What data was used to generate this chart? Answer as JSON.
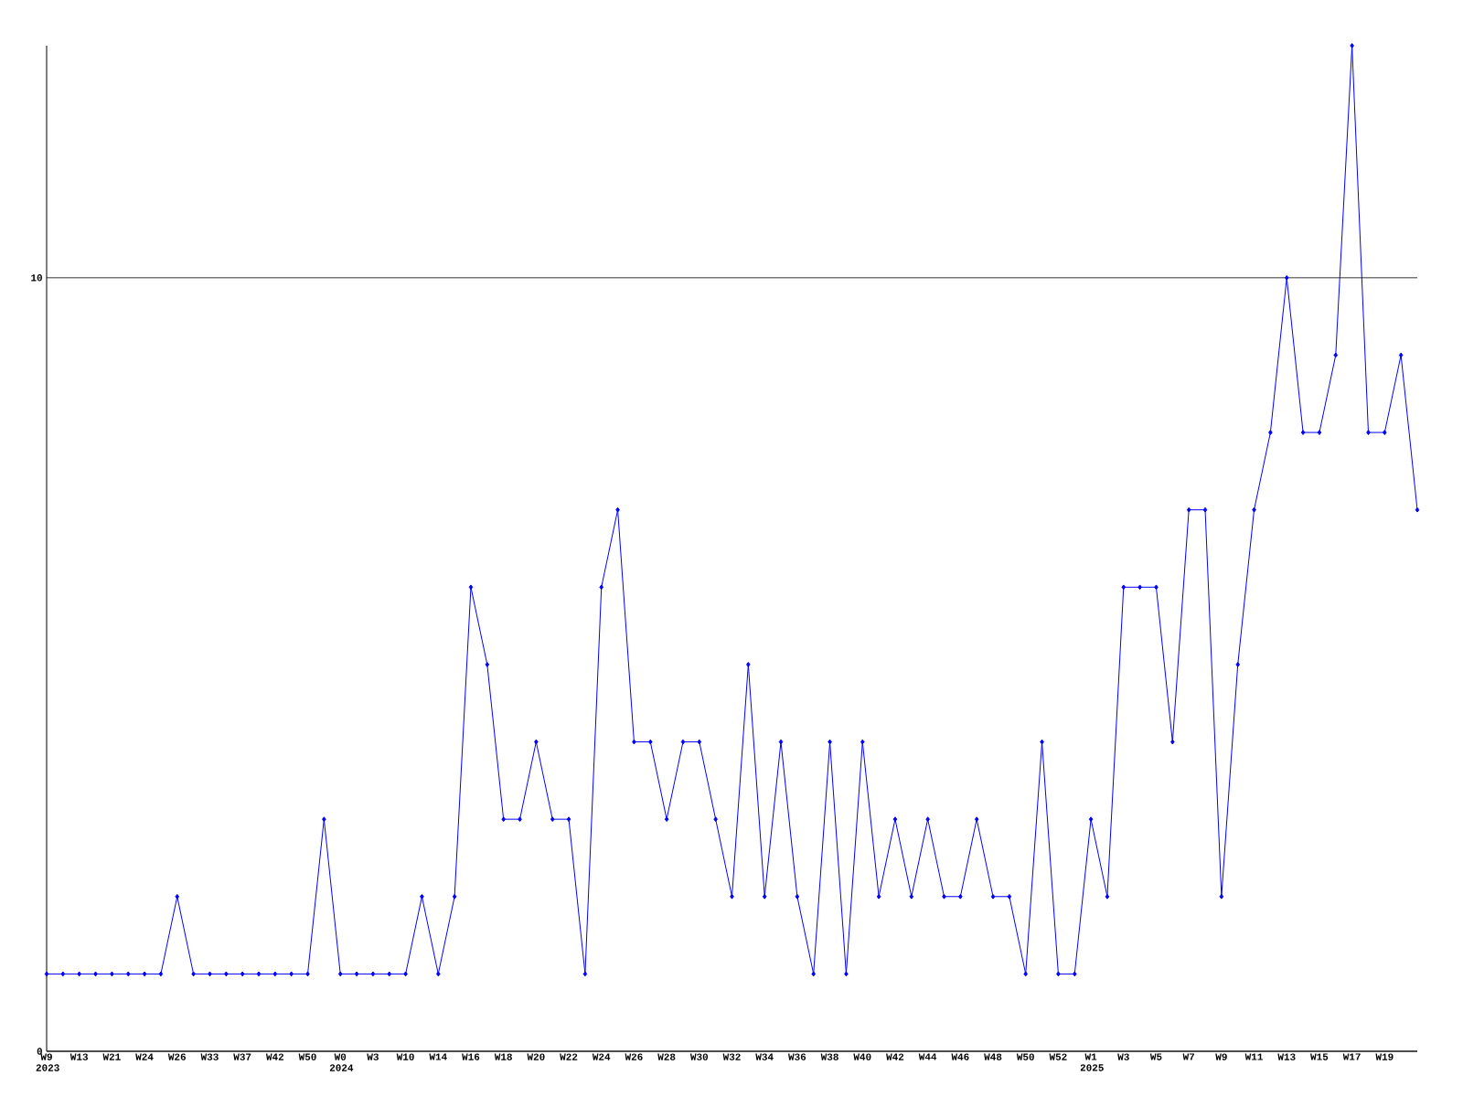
{
  "chart_data": {
    "type": "line",
    "categories": [
      "W9 2023",
      null,
      "W13",
      null,
      "W21",
      null,
      "W24",
      null,
      "W26",
      null,
      "W33",
      null,
      "W37",
      null,
      "W42",
      null,
      "W50",
      null,
      "W0 2024",
      null,
      "W3",
      null,
      "W10",
      null,
      "W14",
      null,
      "W16",
      null,
      "W18",
      null,
      "W20",
      null,
      "W22",
      null,
      "W24",
      null,
      "W26",
      null,
      "W28",
      null,
      "W30",
      null,
      "W32",
      null,
      "W34",
      null,
      "W36",
      null,
      "W38",
      null,
      "W40",
      null,
      "W42",
      null,
      "W44",
      null,
      "W46",
      null,
      "W48",
      null,
      "W50",
      null,
      "W52",
      null,
      "W1 2025",
      null,
      "W3",
      null,
      "W5",
      null,
      "W7",
      null,
      "W9",
      null,
      "W11",
      null,
      "W13",
      null,
      "W15",
      null,
      "W17",
      null,
      "W19",
      null,
      null
    ],
    "series": [
      {
        "color": "#0000ff",
        "values": [
          1,
          1,
          1,
          1,
          1,
          1,
          1,
          1,
          2,
          1,
          1,
          1,
          1,
          1,
          1,
          1,
          1,
          3,
          1,
          1,
          1,
          1,
          1,
          2,
          1,
          2,
          6,
          5,
          3,
          3,
          4,
          3,
          3,
          1,
          6,
          7,
          4,
          4,
          3,
          4,
          4,
          3,
          2,
          5,
          2,
          4,
          2,
          1,
          4,
          1,
          4,
          2,
          3,
          2,
          3,
          2,
          2,
          3,
          2,
          2,
          1,
          4,
          1,
          1,
          3,
          2,
          6,
          6,
          6,
          4,
          7,
          7,
          2,
          5,
          7,
          8,
          10,
          8,
          8,
          9,
          13,
          8,
          8,
          9,
          7
        ]
      }
    ],
    "ylim": [
      0,
      13
    ],
    "yticks": [
      0,
      10
    ],
    "grid": "y",
    "marker": "diamond",
    "line_style": "solid"
  }
}
